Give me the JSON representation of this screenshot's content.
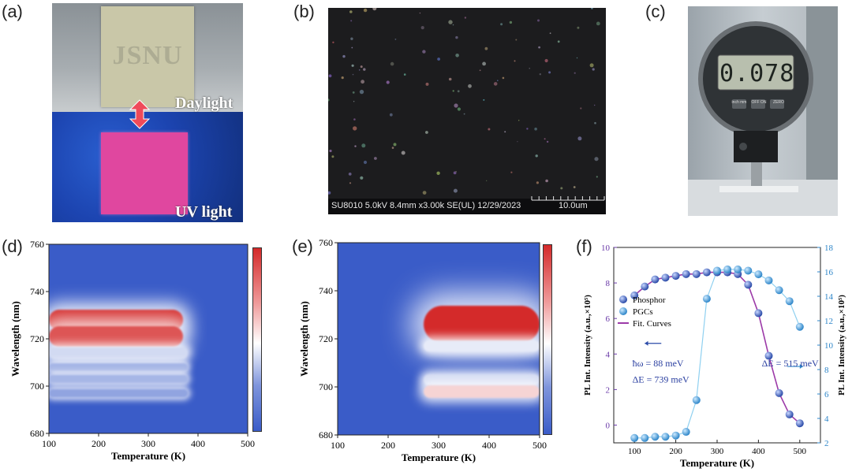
{
  "panels": {
    "a": {
      "label": "(a)",
      "logo_text": "JSNU",
      "daylight_label": "Daylight",
      "uv_label": "UV light"
    },
    "b": {
      "label": "(b)",
      "sem_info": "SU8010 5.0kV 8.4mm x3.00k SE(UL) 12/29/2023",
      "scale_label": "10.0um"
    },
    "c": {
      "label": "(c)",
      "display_value": "0.078",
      "btn_inch": "inch mm",
      "btn_off": "OFF ON",
      "btn_zero": "ZERO"
    },
    "d": {
      "label": "(d)"
    },
    "e": {
      "label": "(e)"
    },
    "f": {
      "label": "(f)"
    }
  },
  "colors": {
    "low": "#3a5cc8",
    "mid": "#ffffff",
    "high": "#d42a2a",
    "fit": "#9c3aa8",
    "phosphor": "#2a4aa8",
    "pgc": "#2e86c9"
  },
  "chart_data": [
    {
      "type": "heatmap",
      "panel": "d",
      "xlabel": "Temperature (K)",
      "ylabel": "Wavelength (nm)",
      "xlim": [
        100,
        500
      ],
      "ylim": [
        680,
        760
      ],
      "xticks": [
        "100",
        "200",
        "300",
        "400",
        "500"
      ],
      "yticks": [
        "680",
        "700",
        "720",
        "740",
        "760"
      ],
      "bands": [
        {
          "y_center": 728,
          "y_width": 4,
          "x_start": 100,
          "x_end": 370,
          "intensity": 1.0
        },
        {
          "y_center": 721,
          "y_width": 4,
          "x_start": 100,
          "x_end": 370,
          "intensity": 0.9
        },
        {
          "y_center": 714,
          "y_width": 2,
          "x_start": 100,
          "x_end": 380,
          "intensity": 0.35
        },
        {
          "y_center": 708,
          "y_width": 1.5,
          "x_start": 100,
          "x_end": 380,
          "intensity": 0.25
        },
        {
          "y_center": 703,
          "y_width": 1.5,
          "x_start": 100,
          "x_end": 380,
          "intensity": 0.25
        },
        {
          "y_center": 697,
          "y_width": 1.5,
          "x_start": 100,
          "x_end": 380,
          "intensity": 0.2
        }
      ]
    },
    {
      "type": "heatmap",
      "panel": "e",
      "xlabel": "Temperature (K)",
      "ylabel": "Wavelength (nm)",
      "xlim": [
        100,
        500
      ],
      "ylim": [
        680,
        760
      ],
      "xticks": [
        "100",
        "200",
        "300",
        "400",
        "500"
      ],
      "yticks": [
        "680",
        "700",
        "720",
        "740",
        "760"
      ],
      "bands": [
        {
          "y_center": 726,
          "y_width": 7,
          "x_start": 270,
          "x_end": 500,
          "intensity": 1.0
        },
        {
          "y_center": 717,
          "y_width": 2,
          "x_start": 270,
          "x_end": 500,
          "intensity": 0.4
        },
        {
          "y_center": 703,
          "y_width": 2,
          "x_start": 270,
          "x_end": 500,
          "intensity": 0.35
        },
        {
          "y_center": 698,
          "y_width": 2.5,
          "x_start": 270,
          "x_end": 500,
          "intensity": 0.6
        }
      ]
    },
    {
      "type": "scatter",
      "panel": "f",
      "xlabel": "Temperature (K)",
      "ylabel_left": "PL Int. Intensity (a.u.,×10⁵)",
      "ylabel_right": "PL Int. Intensity (a.u.,×10⁵)",
      "xlim": [
        50,
        550
      ],
      "ylim_left": [
        -1,
        10
      ],
      "ylim_right": [
        2,
        18
      ],
      "xticks": [
        "100",
        "200",
        "300",
        "400",
        "500"
      ],
      "yticks_left": [
        "0",
        "2",
        "4",
        "6",
        "8",
        "10"
      ],
      "yticks_right": [
        "2",
        "4",
        "6",
        "8",
        "10",
        "12",
        "14",
        "16",
        "18"
      ],
      "legend": [
        "Phosphor",
        "PGCs",
        "Fit. Curves"
      ],
      "annotations": {
        "left_1": "ħω = 88 meV",
        "left_2": "ΔE = 739 meV",
        "right": "ΔE = 515 meV"
      },
      "series": [
        {
          "name": "Phosphor",
          "axis": "left",
          "x": [
            100,
            125,
            150,
            175,
            200,
            225,
            250,
            275,
            300,
            325,
            350,
            375,
            400,
            425,
            450,
            475,
            500
          ],
          "y": [
            7.3,
            7.8,
            8.2,
            8.3,
            8.4,
            8.5,
            8.5,
            8.6,
            8.6,
            8.6,
            8.5,
            7.9,
            6.3,
            3.9,
            1.8,
            0.6,
            0.1
          ]
        },
        {
          "name": "PGCs",
          "axis": "right",
          "x": [
            100,
            125,
            150,
            175,
            200,
            225,
            250,
            275,
            300,
            325,
            350,
            375,
            400,
            425,
            450,
            475,
            500
          ],
          "y": [
            2.4,
            2.4,
            2.5,
            2.5,
            2.6,
            2.9,
            5.5,
            13.8,
            16.1,
            16.2,
            16.2,
            16.1,
            15.8,
            15.3,
            14.5,
            13.6,
            11.5
          ]
        }
      ]
    }
  ]
}
